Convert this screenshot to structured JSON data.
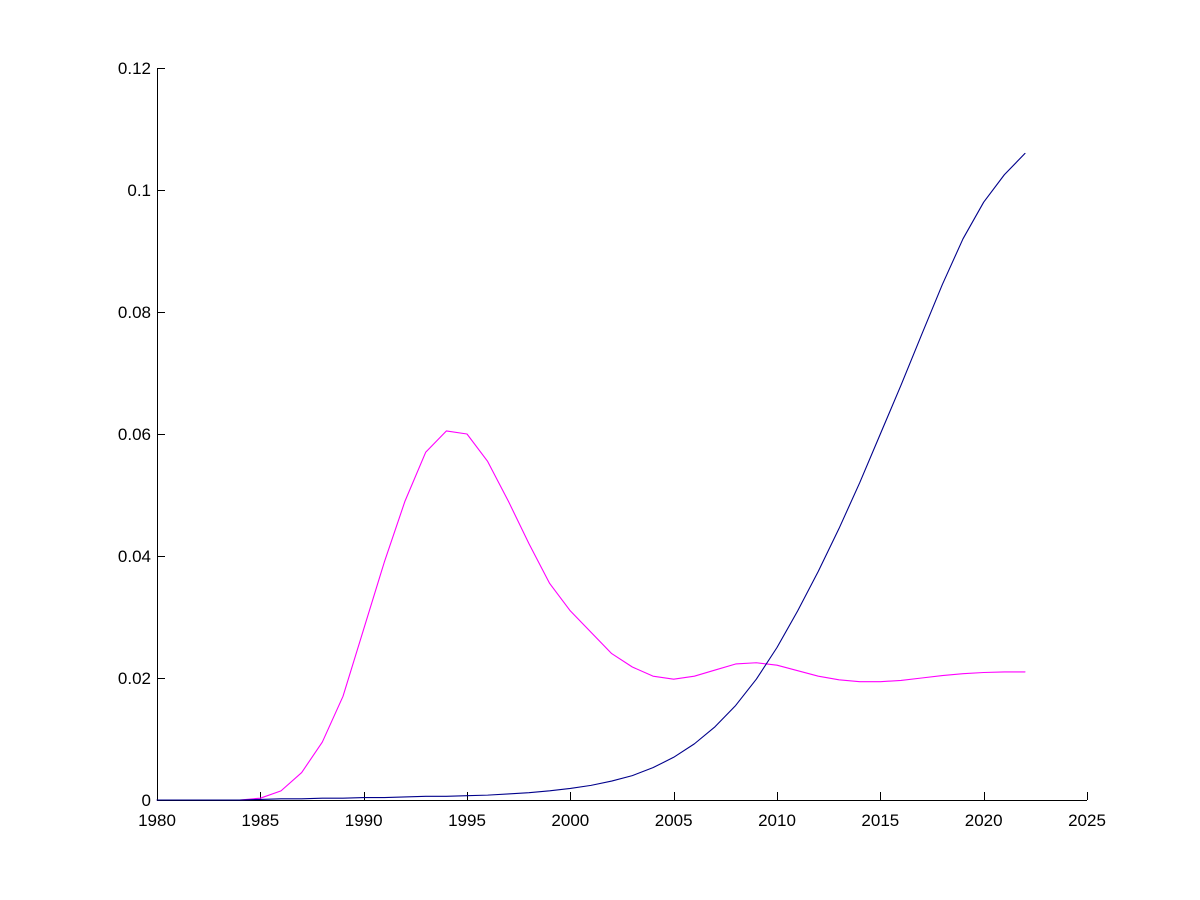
{
  "chart_data": {
    "type": "line",
    "title": "",
    "xlabel": "",
    "ylabel": "",
    "xlim": [
      1980,
      2025
    ],
    "ylim": [
      0,
      0.12
    ],
    "grid": false,
    "x_ticks": [
      1980,
      1985,
      1990,
      1995,
      2000,
      2005,
      2010,
      2015,
      2020,
      2025
    ],
    "x_tick_labels": [
      "1980",
      "1985",
      "1990",
      "1995",
      "2000",
      "2005",
      "2010",
      "2015",
      "2020",
      "2025"
    ],
    "y_ticks": [
      0,
      0.02,
      0.04,
      0.06,
      0.08,
      0.1,
      0.12
    ],
    "y_tick_labels": [
      "0",
      "0.02",
      "0.04",
      "0.06",
      "0.08",
      "0.1",
      "0.12"
    ],
    "series": [
      {
        "color": "#ff00ff",
        "points": [
          [
            1980,
            0
          ],
          [
            1981,
            0
          ],
          [
            1982,
            0
          ],
          [
            1983,
            0
          ],
          [
            1984,
            0
          ],
          [
            1985,
            0.0003
          ],
          [
            1986,
            0.0015
          ],
          [
            1987,
            0.0045
          ],
          [
            1988,
            0.0095
          ],
          [
            1989,
            0.017
          ],
          [
            1990,
            0.028
          ],
          [
            1991,
            0.039
          ],
          [
            1992,
            0.049
          ],
          [
            1993,
            0.057
          ],
          [
            1994,
            0.0605
          ],
          [
            1995,
            0.06
          ],
          [
            1996,
            0.0555
          ],
          [
            1997,
            0.049
          ],
          [
            1998,
            0.042
          ],
          [
            1999,
            0.0355
          ],
          [
            2000,
            0.031
          ],
          [
            2001,
            0.0275
          ],
          [
            2002,
            0.024
          ],
          [
            2003,
            0.0218
          ],
          [
            2004,
            0.0203
          ],
          [
            2005,
            0.0198
          ],
          [
            2006,
            0.0203
          ],
          [
            2007,
            0.0213
          ],
          [
            2008,
            0.0223
          ],
          [
            2009,
            0.0225
          ],
          [
            2010,
            0.0221
          ],
          [
            2011,
            0.0212
          ],
          [
            2012,
            0.0203
          ],
          [
            2013,
            0.0197
          ],
          [
            2014,
            0.0194
          ],
          [
            2015,
            0.0194
          ],
          [
            2016,
            0.0196
          ],
          [
            2017,
            0.02
          ],
          [
            2018,
            0.0204
          ],
          [
            2019,
            0.0207
          ],
          [
            2020,
            0.0209
          ],
          [
            2021,
            0.021
          ],
          [
            2022,
            0.021
          ]
        ]
      },
      {
        "color": "#00008b",
        "points": [
          [
            1980,
            0
          ],
          [
            1981,
            0
          ],
          [
            1982,
            0
          ],
          [
            1983,
            0
          ],
          [
            1984,
            0
          ],
          [
            1985,
            0.0001
          ],
          [
            1986,
            0.0002
          ],
          [
            1987,
            0.0002
          ],
          [
            1988,
            0.0003
          ],
          [
            1989,
            0.0003
          ],
          [
            1990,
            0.0004
          ],
          [
            1991,
            0.0004
          ],
          [
            1992,
            0.0005
          ],
          [
            1993,
            0.0006
          ],
          [
            1994,
            0.0006
          ],
          [
            1995,
            0.0007
          ],
          [
            1996,
            0.0008
          ],
          [
            1997,
            0.001
          ],
          [
            1998,
            0.0012
          ],
          [
            1999,
            0.0015
          ],
          [
            2000,
            0.0019
          ],
          [
            2001,
            0.0024
          ],
          [
            2002,
            0.0031
          ],
          [
            2003,
            0.004
          ],
          [
            2004,
            0.0053
          ],
          [
            2005,
            0.007
          ],
          [
            2006,
            0.0092
          ],
          [
            2007,
            0.012
          ],
          [
            2008,
            0.0155
          ],
          [
            2009,
            0.0198
          ],
          [
            2010,
            0.025
          ],
          [
            2011,
            0.031
          ],
          [
            2012,
            0.0375
          ],
          [
            2013,
            0.0445
          ],
          [
            2014,
            0.052
          ],
          [
            2015,
            0.06
          ],
          [
            2016,
            0.068
          ],
          [
            2017,
            0.0763
          ],
          [
            2018,
            0.0845
          ],
          [
            2019,
            0.092
          ],
          [
            2020,
            0.098
          ],
          [
            2021,
            0.1025
          ],
          [
            2022,
            0.106
          ]
        ]
      }
    ]
  }
}
